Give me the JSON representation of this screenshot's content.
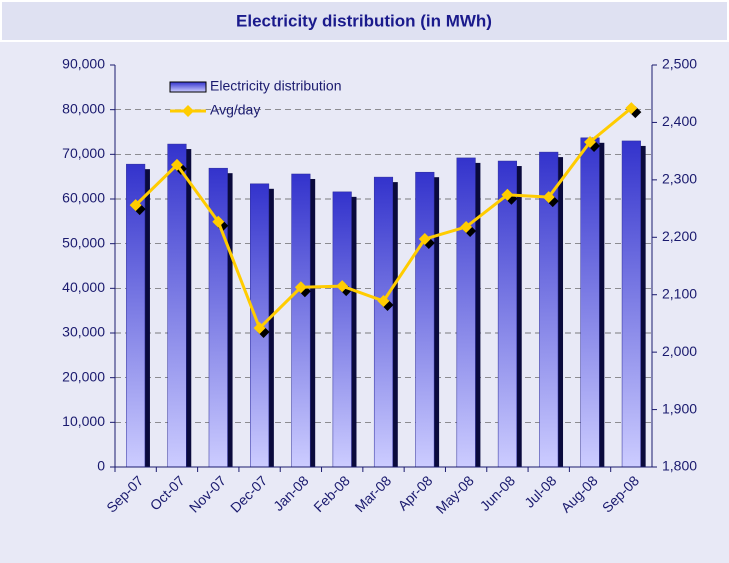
{
  "chart_data": {
    "type": "bar-line",
    "title": "Electricity distribution (in MWh)",
    "categories": [
      "Sep-07",
      "Oct-07",
      "Nov-07",
      "Dec-07",
      "Jan-08",
      "Feb-08",
      "Mar-08",
      "Apr-08",
      "May-08",
      "Jun-08",
      "Jul-08",
      "Aug-08",
      "Sep-08"
    ],
    "series": [
      {
        "name": "Electricity distribution",
        "type": "bar",
        "color": "#3333cc",
        "values": [
          67800,
          72300,
          66900,
          63400,
          65600,
          61600,
          64900,
          66000,
          69200,
          68500,
          70500,
          73700,
          73000
        ]
      },
      {
        "name": "Avg/day",
        "type": "line",
        "axis": "y2",
        "color": "#ffcc00",
        "values": [
          2256,
          2326,
          2227,
          2042,
          2113,
          2115,
          2089,
          2197,
          2218,
          2274,
          2270,
          2366,
          2425
        ]
      }
    ],
    "ylim": [
      0,
      90000
    ],
    "yticks": [
      0,
      {
        "value": 10000,
        "label": "10,000"
      },
      {
        "value": 20000,
        "label": "20,000"
      },
      {
        "value": 30000,
        "label": "30,000"
      },
      {
        "value": 40000,
        "label": "40,000"
      },
      {
        "value": 50000,
        "label": "50,000"
      },
      {
        "value": 60000,
        "label": "60,000"
      },
      {
        "value": 70000,
        "label": "70,000"
      },
      {
        "value": 80000,
        "label": "80,000"
      },
      {
        "value": 90000,
        "label": "90,000"
      }
    ],
    "y2lim": [
      1800,
      2500
    ],
    "y2ticks": [
      {
        "value": 1800,
        "label": "1,800"
      },
      {
        "value": 1900,
        "label": "1,900"
      },
      {
        "value": 2000,
        "label": "2,000"
      },
      {
        "value": 2100,
        "label": "2,100"
      },
      {
        "value": 2200,
        "label": "2,200"
      },
      {
        "value": 2300,
        "label": "2,300"
      },
      {
        "value": 2400,
        "label": "2,400"
      },
      {
        "value": 2500,
        "label": "2,500"
      }
    ],
    "grid": true,
    "legend": "upper-left"
  }
}
